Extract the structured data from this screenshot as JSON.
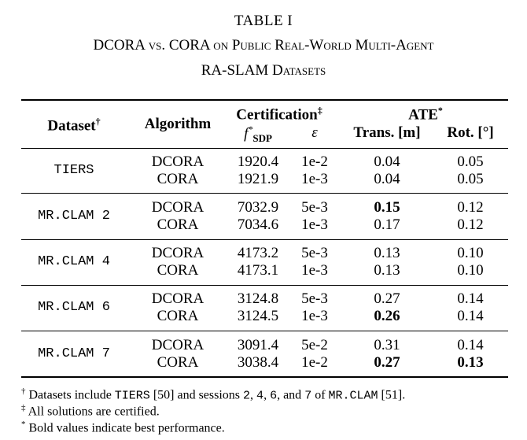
{
  "caption": {
    "label": "TABLE I",
    "line1": "DCORA vs. CORA on Public Real-World Multi-Agent",
    "line2": "RA-SLAM Datasets"
  },
  "header": {
    "dataset": "Dataset",
    "dataset_mark": "†",
    "algorithm": "Algorithm",
    "certification": "Certification",
    "certification_mark": "‡",
    "f_sdp_base": "f",
    "f_sdp_sup": "*",
    "f_sdp_sub": "SDP",
    "epsilon": "ε",
    "ate": "ATE",
    "ate_mark": "*",
    "trans": "Trans. [m]",
    "rot": "Rot. [°]"
  },
  "table": [
    {
      "dataset": "TIERS",
      "rows": [
        {
          "algorithm": "DCORA",
          "f": "1920.4",
          "eps": "1e-2",
          "trans": "0.04",
          "rot": "0.05",
          "trans_bold": false,
          "rot_bold": false
        },
        {
          "algorithm": "CORA",
          "f": "1921.9",
          "eps": "1e-3",
          "trans": "0.04",
          "rot": "0.05",
          "trans_bold": false,
          "rot_bold": false
        }
      ]
    },
    {
      "dataset": "MR.CLAM 2",
      "rows": [
        {
          "algorithm": "DCORA",
          "f": "7032.9",
          "eps": "5e-3",
          "trans": "0.15",
          "rot": "0.12",
          "trans_bold": true,
          "rot_bold": false
        },
        {
          "algorithm": "CORA",
          "f": "7034.6",
          "eps": "1e-3",
          "trans": "0.17",
          "rot": "0.12",
          "trans_bold": false,
          "rot_bold": false
        }
      ]
    },
    {
      "dataset": "MR.CLAM 4",
      "rows": [
        {
          "algorithm": "DCORA",
          "f": "4173.2",
          "eps": "5e-3",
          "trans": "0.13",
          "rot": "0.10",
          "trans_bold": false,
          "rot_bold": false
        },
        {
          "algorithm": "CORA",
          "f": "4173.1",
          "eps": "1e-3",
          "trans": "0.13",
          "rot": "0.10",
          "trans_bold": false,
          "rot_bold": false
        }
      ]
    },
    {
      "dataset": "MR.CLAM 6",
      "rows": [
        {
          "algorithm": "DCORA",
          "f": "3124.8",
          "eps": "5e-3",
          "trans": "0.27",
          "rot": "0.14",
          "trans_bold": false,
          "rot_bold": false
        },
        {
          "algorithm": "CORA",
          "f": "3124.5",
          "eps": "1e-3",
          "trans": "0.26",
          "rot": "0.14",
          "trans_bold": true,
          "rot_bold": false
        }
      ]
    },
    {
      "dataset": "MR.CLAM 7",
      "rows": [
        {
          "algorithm": "DCORA",
          "f": "3091.4",
          "eps": "5e-2",
          "trans": "0.31",
          "rot": "0.14",
          "trans_bold": false,
          "rot_bold": false
        },
        {
          "algorithm": "CORA",
          "f": "3038.4",
          "eps": "1e-2",
          "trans": "0.27",
          "rot": "0.13",
          "trans_bold": true,
          "rot_bold": true
        }
      ]
    }
  ],
  "footnotes": {
    "n1_mark": "†",
    "n1_a": "Datasets include",
    "n1_tiers": "TIERS",
    "n1_b": "[50] and sessions",
    "n1_s2": "2",
    "n1_s4": "4",
    "n1_s6": "6",
    "n1_and": "and",
    "n1_s7": "7",
    "n1_of": "of",
    "n1_mrclam": "MR.CLAM",
    "n1_c": "[51].",
    "n2_mark": "‡",
    "n2": "All solutions are certified.",
    "n3_mark": "*",
    "n3": "Bold values indicate best performance."
  }
}
